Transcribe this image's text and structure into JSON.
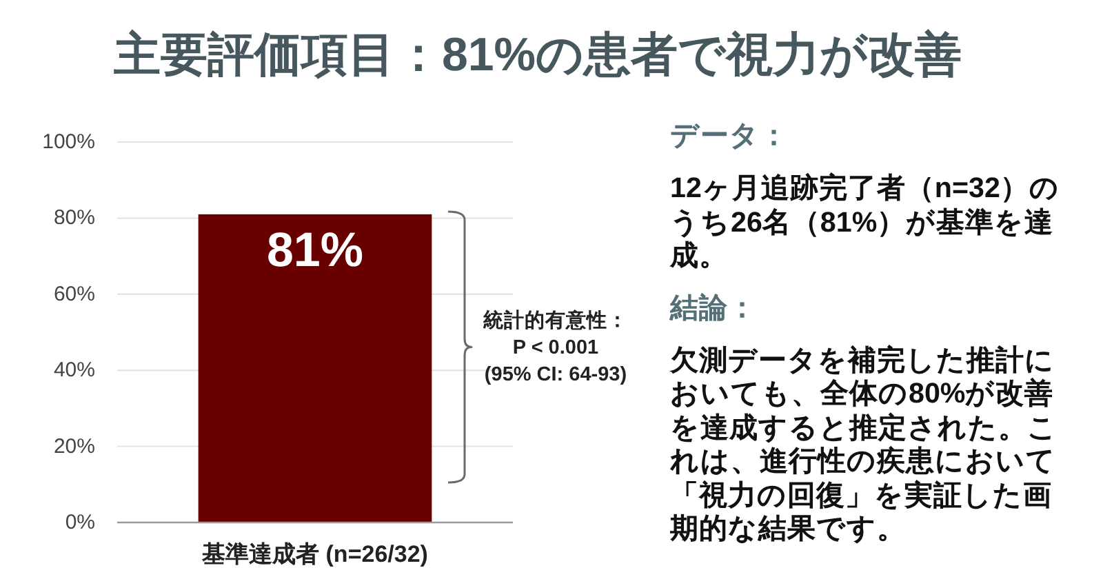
{
  "chart_data": [
    {
      "type": "bar",
      "title": "主要評価項目：81%の患者で視力が改善",
      "categories": [
        "基準達成者 (n=26/32)"
      ],
      "values": [
        81
      ],
      "color": "#690000",
      "value_labels": [
        "81%"
      ],
      "ylim": [
        0,
        100
      ],
      "yticks": [
        {
          "value": 0,
          "label": "0%"
        },
        {
          "value": 20,
          "label": "20%"
        },
        {
          "value": 40,
          "label": "40%"
        },
        {
          "value": 60,
          "label": "60%"
        },
        {
          "value": 80,
          "label": "80%"
        },
        {
          "value": 100,
          "label": "100%"
        }
      ],
      "grid": "y",
      "annotations": [
        "統計的有意性：\nP < 0.001\n(95% CI: 64-93)"
      ]
    },
    {
      "type": "other",
      "annotations": [
        "データ：",
        "12ヶ月追跡完了者（n=32）のうち26名（81%）が基準を達成。",
        "結論：",
        "欠測データを補完した推計においても、全体の80%が改善を達成すると推定された。これは、進行性の疾患において「視力の回復」を実証した画期的な結果です。"
      ]
    }
  ]
}
